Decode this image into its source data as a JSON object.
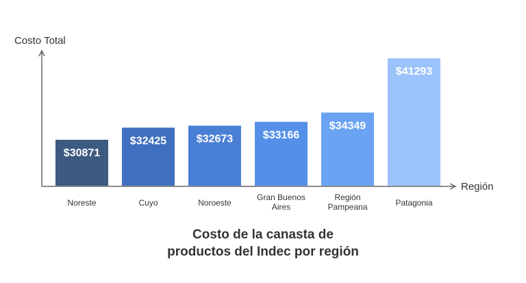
{
  "chart_data": {
    "type": "bar",
    "title_lines": [
      "Costo de la canasta de",
      "productos del Indec por región"
    ],
    "xlabel": "Región",
    "ylabel": "Costo Total",
    "categories": [
      [
        "Noreste"
      ],
      [
        "Cuyo"
      ],
      [
        "Noroeste"
      ],
      [
        "Gran Buenos",
        "Aires"
      ],
      [
        "Región",
        "Pampeana"
      ],
      [
        "Patagonia"
      ]
    ],
    "values": [
      30871,
      32425,
      32673,
      33166,
      34349,
      41293
    ],
    "value_labels": [
      "$30871",
      "$32425",
      "$32673",
      "$33166",
      "$34349",
      "$41293"
    ],
    "ylim": [
      25000,
      42000
    ],
    "grid": false,
    "legend": "none",
    "bar_colors": [
      "#3d5a80",
      "#3f6fbf",
      "#4a7fd6",
      "#5590e8",
      "#6aa3f2",
      "#9cc2fb"
    ],
    "colors": {
      "axis": "#666666",
      "text": "#333333",
      "value_label": "#ffffff"
    }
  }
}
